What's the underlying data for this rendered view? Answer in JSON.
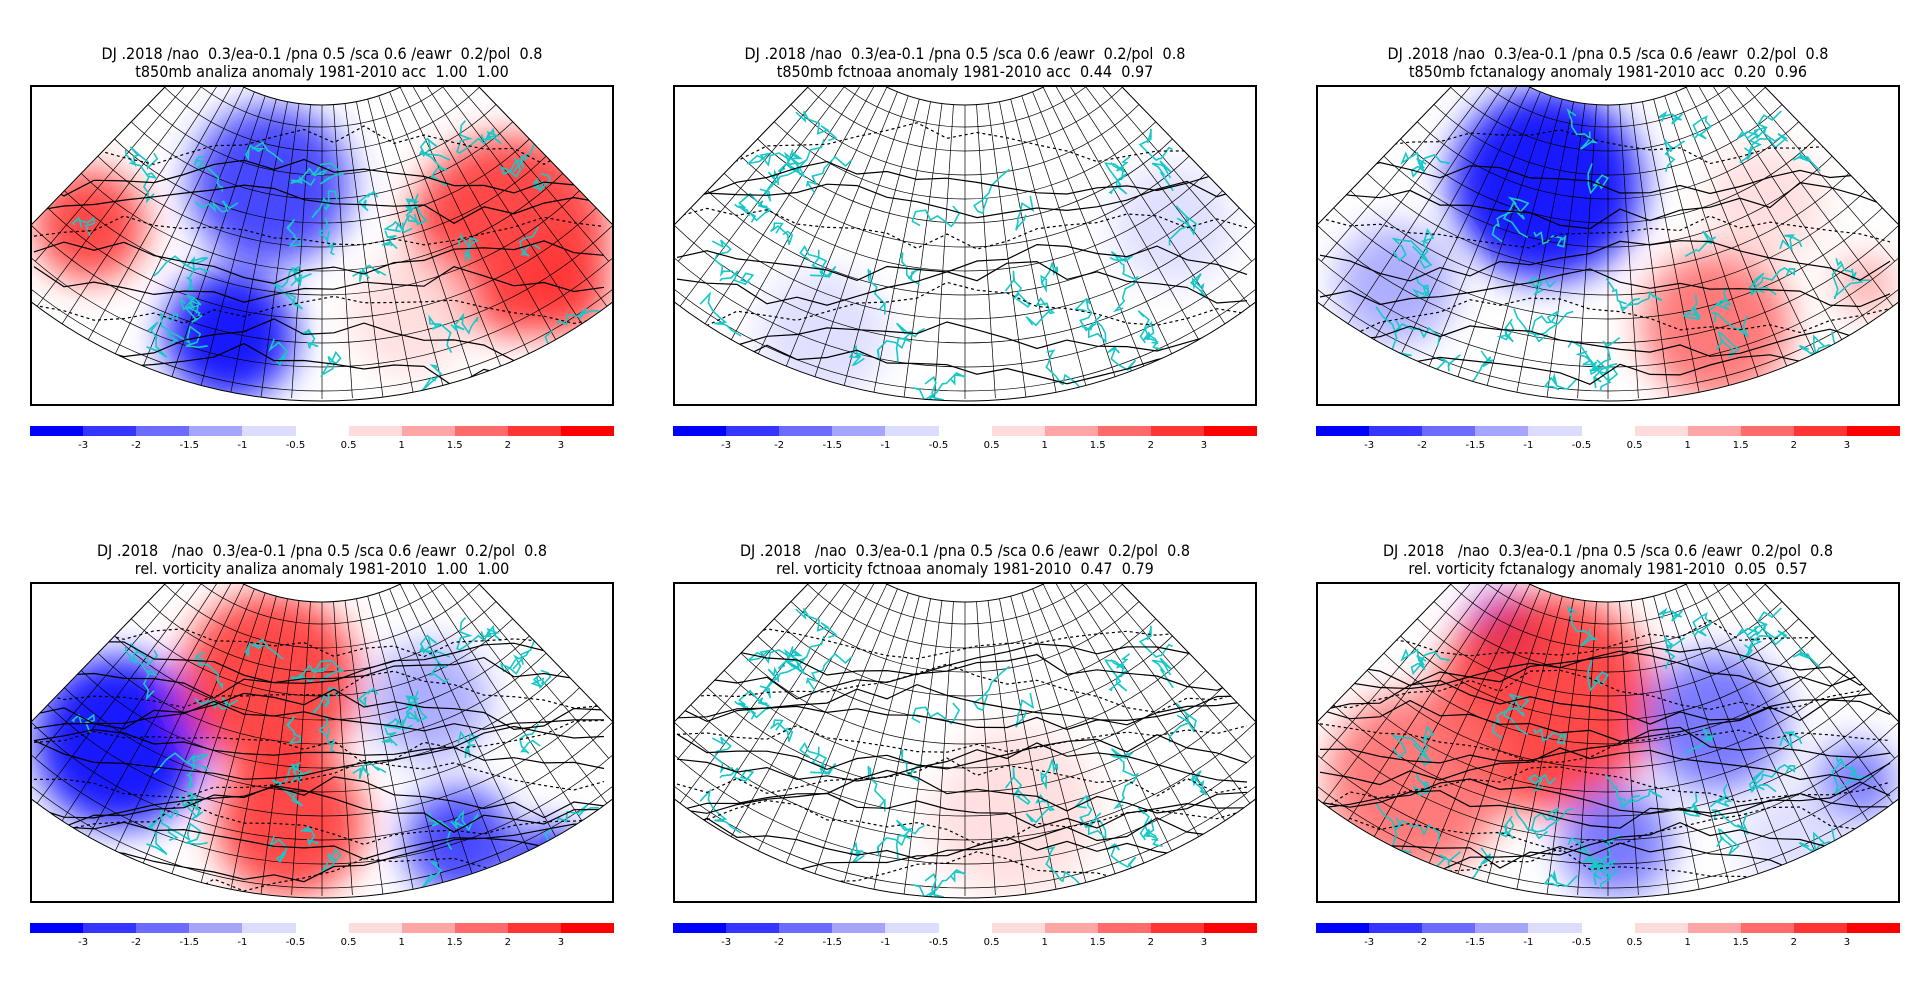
{
  "header_line": "DJ .2018 /nao  0.3/ea-0.1 /pna 0.5 /sca 0.6 /eawr  0.2/pol  0.8",
  "panels": [
    {
      "title1": "DJ .2018 /nao  0.3/ea-0.1 /pna 0.5 /sca 0.6 /eawr  0.2/pol  0.8",
      "title2": "t850mb analiza anomaly 1981-2010 acc  1.00  1.00"
    },
    {
      "title1": "DJ .2018 /nao  0.3/ea-0.1 /pna 0.5 /sca 0.6 /eawr  0.2/pol  0.8",
      "title2": "t850mb fctnoaa anomaly 1981-2010 acc  0.44  0.97"
    },
    {
      "title1": "DJ .2018 /nao  0.3/ea-0.1 /pna 0.5 /sca 0.6 /eawr  0.2/pol  0.8",
      "title2": "t850mb fctanalogy anomaly 1981-2010 acc  0.20  0.96"
    },
    {
      "title1": "DJ .2018   /nao  0.3/ea-0.1 /pna 0.5 /sca 0.6 /eawr  0.2/pol  0.8",
      "title2": "rel. vorticity analiza anomaly 1981-2010  1.00  1.00"
    },
    {
      "title1": "DJ .2018   /nao  0.3/ea-0.1 /pna 0.5 /sca 0.6 /eawr  0.2/pol  0.8",
      "title2": "rel. vorticity fctnoaa anomaly 1981-2010  0.47  0.79"
    },
    {
      "title1": "DJ .2018   /nao  0.3/ea-0.1 /pna 0.5 /sca 0.6 /eawr  0.2/pol  0.8",
      "title2": "rel. vorticity fctanalogy anomaly 1981-2010  0.05  0.57"
    }
  ],
  "chart_data": {
    "type": "heatmap",
    "colorbar": {
      "labels": [
        "-3",
        "-2",
        "-1.5",
        "-1",
        "-0.5",
        "0.5",
        "1",
        "1.5",
        "2",
        "3"
      ],
      "colors": [
        "#0000ff",
        "#3535ff",
        "#6b6bff",
        "#a5a5ff",
        "#dcdcff",
        "#ffffff",
        "#ffdcdc",
        "#ffa5a5",
        "#ff6b6b",
        "#ff3535",
        "#ff0000"
      ]
    }
  }
}
